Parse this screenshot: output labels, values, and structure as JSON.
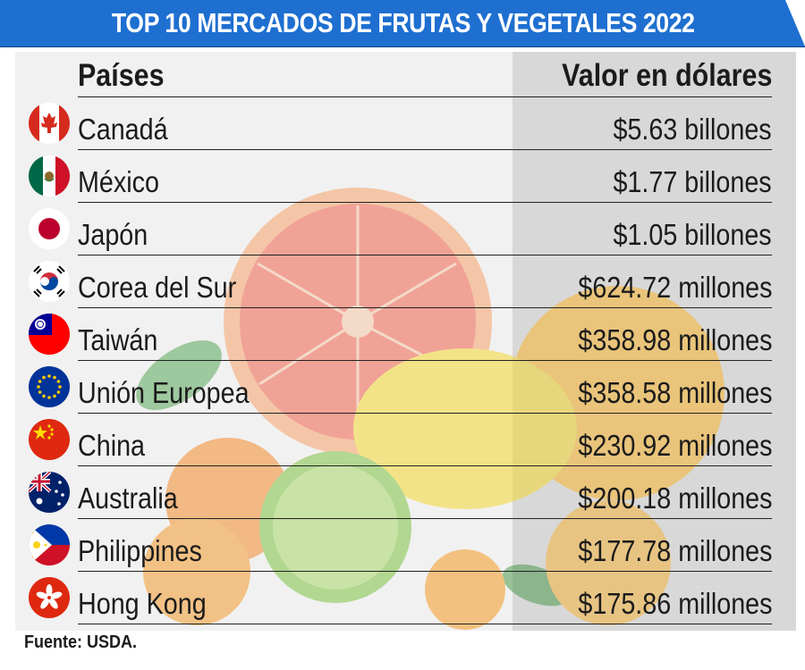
{
  "title": "TOP 10 MERCADOS DE FRUTAS Y VEGETALES 2022",
  "table": {
    "headers": {
      "country": "Países",
      "value": "Valor en dólares"
    },
    "rows": [
      {
        "country": "Canadá",
        "value": "$5.63 billones",
        "flag": "canada-flag-icon"
      },
      {
        "country": "México",
        "value": "$1.77 billones",
        "flag": "mexico-flag-icon"
      },
      {
        "country": "Japón",
        "value": "$1.05 billones",
        "flag": "japan-flag-icon"
      },
      {
        "country": "Corea del Sur",
        "value": "$624.72 millones",
        "flag": "south-korea-flag-icon"
      },
      {
        "country": "Taiwán",
        "value": "$358.98 millones",
        "flag": "taiwan-flag-icon"
      },
      {
        "country": "Unión Europea",
        "value": "$358.58 millones",
        "flag": "european-union-flag-icon"
      },
      {
        "country": "China",
        "value": "$230.92 millones",
        "flag": "china-flag-icon"
      },
      {
        "country": "Australia",
        "value": "$200.18 millones",
        "flag": "australia-flag-icon"
      },
      {
        "country": "Philippines",
        "value": "$177.78 millones",
        "flag": "philippines-flag-icon"
      },
      {
        "country": "Hong Kong",
        "value": "$175.86 millones",
        "flag": "hong-kong-flag-icon"
      }
    ]
  },
  "source": "Fuente: USDA.",
  "colors": {
    "banner": "#1e6fd0",
    "text": "#1b1b1b",
    "panel_left": "#f1f1f1",
    "panel_right": "#d8d8d8"
  }
}
